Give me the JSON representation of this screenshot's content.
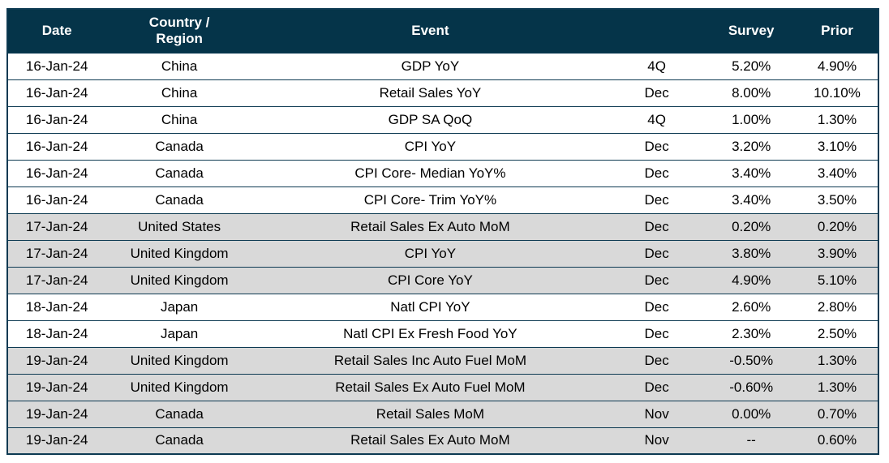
{
  "chart_data": {
    "type": "table",
    "title": "",
    "columns": [
      "Date",
      "Country /\nRegion",
      "Event",
      "",
      "Survey",
      "Prior"
    ],
    "column_keys": [
      "date",
      "country",
      "event",
      "period",
      "survey",
      "prior"
    ],
    "rows": [
      {
        "shaded": false,
        "cells": [
          "16-Jan-24",
          "China",
          "GDP YoY",
          "4Q",
          "5.20%",
          "4.90%"
        ]
      },
      {
        "shaded": false,
        "cells": [
          "16-Jan-24",
          "China",
          "Retail Sales YoY",
          "Dec",
          "8.00%",
          "10.10%"
        ]
      },
      {
        "shaded": false,
        "cells": [
          "16-Jan-24",
          "China",
          "GDP SA QoQ",
          "4Q",
          "1.00%",
          "1.30%"
        ]
      },
      {
        "shaded": false,
        "cells": [
          "16-Jan-24",
          "Canada",
          "CPI YoY",
          "Dec",
          "3.20%",
          "3.10%"
        ]
      },
      {
        "shaded": false,
        "cells": [
          "16-Jan-24",
          "Canada",
          "CPI Core- Median YoY%",
          "Dec",
          "3.40%",
          "3.40%"
        ]
      },
      {
        "shaded": false,
        "cells": [
          "16-Jan-24",
          "Canada",
          "CPI Core- Trim YoY%",
          "Dec",
          "3.40%",
          "3.50%"
        ]
      },
      {
        "shaded": true,
        "cells": [
          "17-Jan-24",
          "United States",
          "Retail Sales Ex Auto MoM",
          "Dec",
          "0.20%",
          "0.20%"
        ]
      },
      {
        "shaded": true,
        "cells": [
          "17-Jan-24",
          "United Kingdom",
          "CPI YoY",
          "Dec",
          "3.80%",
          "3.90%"
        ]
      },
      {
        "shaded": true,
        "cells": [
          "17-Jan-24",
          "United Kingdom",
          "CPI Core YoY",
          "Dec",
          "4.90%",
          "5.10%"
        ]
      },
      {
        "shaded": false,
        "cells": [
          "18-Jan-24",
          "Japan",
          "Natl CPI YoY",
          "Dec",
          "2.60%",
          "2.80%"
        ]
      },
      {
        "shaded": false,
        "cells": [
          "18-Jan-24",
          "Japan",
          "Natl CPI Ex Fresh Food YoY",
          "Dec",
          "2.30%",
          "2.50%"
        ]
      },
      {
        "shaded": true,
        "cells": [
          "19-Jan-24",
          "United Kingdom",
          "Retail Sales Inc Auto Fuel MoM",
          "Dec",
          "-0.50%",
          "1.30%"
        ]
      },
      {
        "shaded": true,
        "cells": [
          "19-Jan-24",
          "United Kingdom",
          "Retail Sales Ex Auto Fuel MoM",
          "Dec",
          "-0.60%",
          "1.30%"
        ]
      },
      {
        "shaded": true,
        "cells": [
          "19-Jan-24",
          "Canada",
          "Retail Sales MoM",
          "Nov",
          "0.00%",
          "0.70%"
        ]
      },
      {
        "shaded": true,
        "cells": [
          "19-Jan-24",
          "Canada",
          "Retail Sales Ex Auto MoM",
          "Nov",
          "--",
          "0.60%"
        ]
      }
    ]
  },
  "colors": {
    "header_bg": "#053449",
    "header_text": "#ffffff",
    "row_shaded": "#d9d9d9",
    "row_plain": "#ffffff",
    "border": "#0d3a52",
    "body_text": "#000000"
  }
}
